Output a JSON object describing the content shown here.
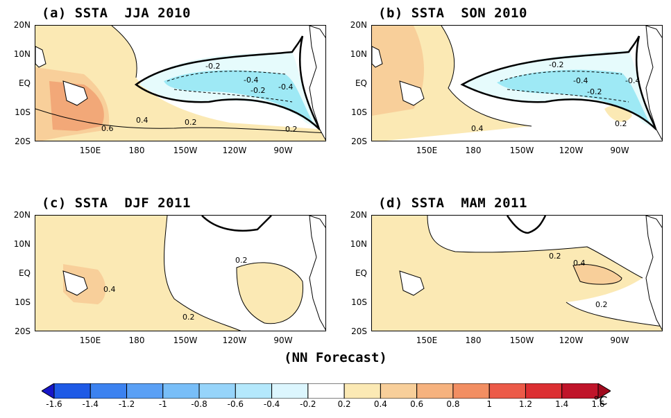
{
  "colors": {
    "land": "#ffffff",
    "neg_0_2": "#e6fbfc",
    "neg_0_4": "#9ee9f5",
    "neg_0_6": "#7fd6f0",
    "pos_0_2": "#fbe9b4",
    "pos_0_4": "#f8cf9a",
    "pos_0_6": "#f2a878",
    "contour": "#000000"
  },
  "y_ticks": [
    "20N",
    "10N",
    "EQ",
    "10S",
    "20S"
  ],
  "x_ticks": [
    "150E",
    "180",
    "150W",
    "120W",
    "90W"
  ],
  "panels": [
    {
      "title": "(a) SSTA  JJA 2010",
      "labels": [
        "-0.2",
        "-0.4",
        "-0.2",
        "-0.4",
        "0.6",
        "0.4",
        "0.2",
        "0.2"
      ]
    },
    {
      "title": "(b) SSTA  SON 2010",
      "labels": [
        "-0.2",
        "-0.4",
        "-0.2",
        "-0.4",
        "0.4",
        "0.2"
      ]
    },
    {
      "title": "(c) SSTA  DJF 2011",
      "labels": [
        "0.2",
        "0.4",
        "0.2"
      ]
    },
    {
      "title": "(d) SSTA  MAM 2011",
      "labels": [
        "0.2",
        "0.4",
        "0.2"
      ]
    }
  ],
  "footer": "(NN Forecast)",
  "colorbar": {
    "labels": [
      "-1.6",
      "-1.4",
      "-1.2",
      "-1",
      "-0.8",
      "-0.6",
      "-0.4",
      "-0.2",
      "0.2",
      "0.4",
      "0.6",
      "0.8",
      "1",
      "1.2",
      "1.4",
      "1.6"
    ],
    "colors": [
      "#1616c8",
      "#1e5ae6",
      "#3c82f0",
      "#5aa0f5",
      "#78bef8",
      "#96d4fa",
      "#b4e8fc",
      "#dcf6fe",
      "#ffffff",
      "#fbe9b4",
      "#f8cf9a",
      "#f6b27e",
      "#f28e62",
      "#ec5a48",
      "#dc2f32",
      "#c0142a",
      "#a00a1e"
    ],
    "unit": "°C"
  }
}
